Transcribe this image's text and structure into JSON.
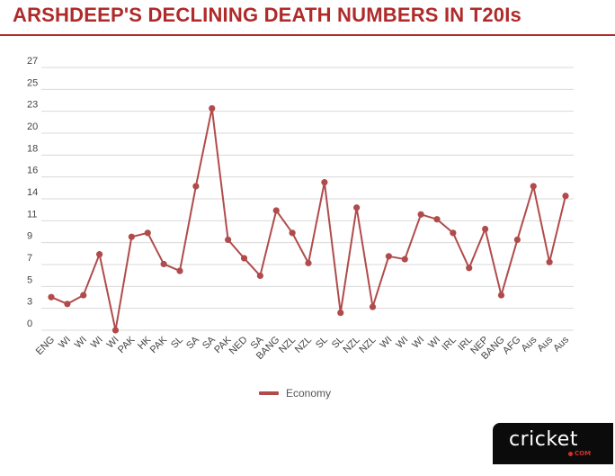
{
  "header": {
    "title": "ARSHDEEP'S DECLINING DEATH NUMBERS IN T20Is",
    "title_color": "#b02a2a",
    "rule_color": "#b02a2a"
  },
  "chart_data": {
    "type": "line",
    "title": "ARSHDEEP'S DECLINING DEATH NUMBERS IN T20Is",
    "xlabel": "",
    "ylabel": "",
    "grid": true,
    "legend_position": "bottom",
    "y_ticks": [
      0,
      3,
      5,
      7,
      9,
      11,
      14,
      16,
      18,
      20,
      23,
      25,
      27
    ],
    "categories": [
      "ENG",
      "WI",
      "WI",
      "WI",
      "WI",
      "PAK",
      "HK",
      "PAK",
      "SL",
      "SA",
      "SA",
      "PAK",
      "NED",
      "SA",
      "BANG",
      "NZL",
      "NZL",
      "SL",
      "SL",
      "NZL",
      "NZL",
      "WI",
      "WI",
      "WI",
      "WI",
      "IRL",
      "IRL",
      "NEP",
      "BANG",
      "AFG",
      "Aus",
      "Aus",
      "Aus"
    ],
    "series": [
      {
        "name": "Economy",
        "color": "#b14b4b",
        "values": [
          3.4,
          2.7,
          3.6,
          7.8,
          0.0,
          9.6,
          10.0,
          6.8,
          6.1,
          14.8,
          22.8,
          9.3,
          7.4,
          5.6,
          12.3,
          10.0,
          6.9,
          15.2,
          1.8,
          12.6,
          2.4,
          7.6,
          7.3,
          11.9,
          11.4,
          10.0,
          6.4,
          10.4,
          3.6,
          9.3,
          14.8,
          7.0,
          13.8
        ]
      }
    ]
  },
  "legend": {
    "label": "Economy"
  },
  "brand": {
    "logo_text": "cricket",
    "logo_sub": "COM",
    "accent_color": "#d32f2f"
  }
}
